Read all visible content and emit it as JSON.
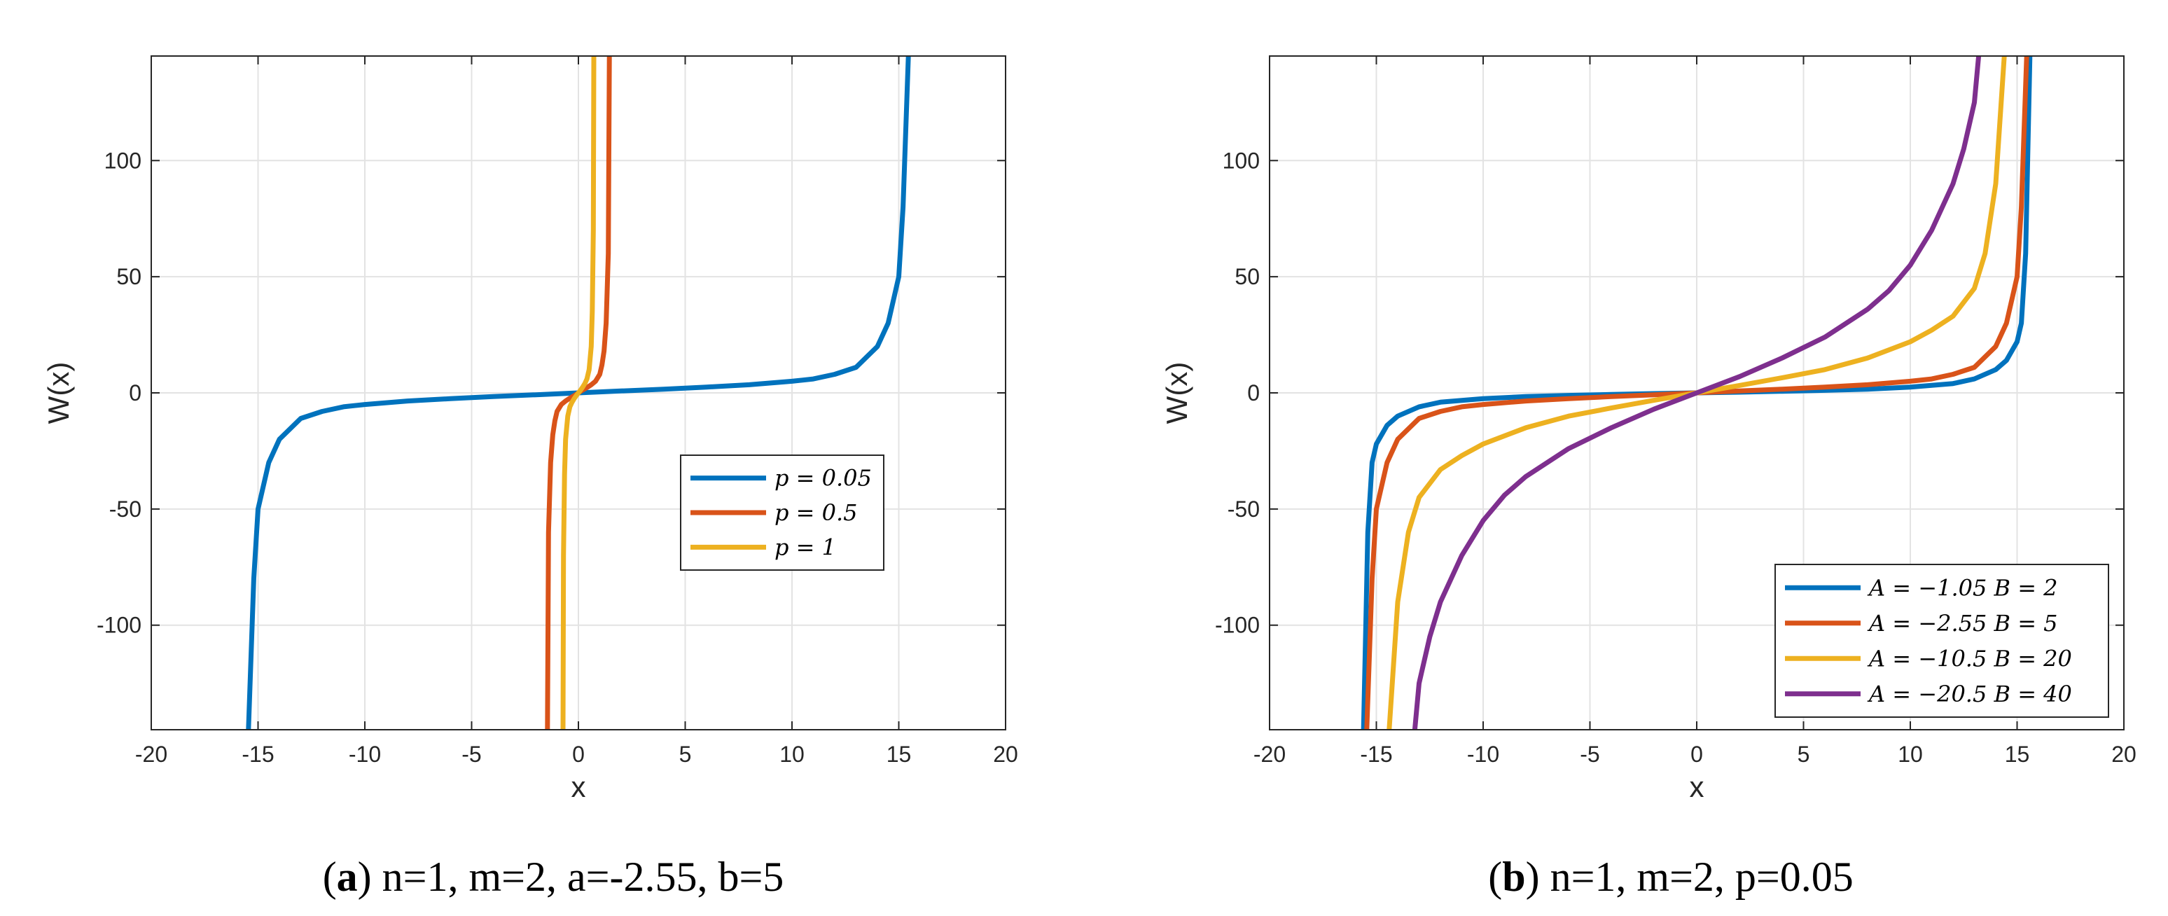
{
  "chart_data": [
    {
      "type": "line",
      "id": "a",
      "caption_letter": "a",
      "caption_text": "n=1, m=2, a=-2.55, b=5",
      "xlabel": "x",
      "ylabel": "W(x)",
      "xlim": [
        -20,
        20
      ],
      "ylim": [
        -145,
        145
      ],
      "xticks": [
        -20,
        -15,
        -10,
        -5,
        0,
        5,
        10,
        15,
        20
      ],
      "yticks": [
        -100,
        -50,
        0,
        50,
        100
      ],
      "grid": true,
      "legend_position": "center-right",
      "series": [
        {
          "name": "p = 0.05",
          "color": "#0072BD",
          "x": [
            -15.45,
            -15.2,
            -15.0,
            -14.5,
            -14.0,
            -13.0,
            -12.0,
            -11.0,
            -10.0,
            -8.0,
            -6.0,
            -4.0,
            -2.0,
            0.0,
            2.0,
            4.0,
            6.0,
            8.0,
            10.0,
            11.0,
            12.0,
            13.0,
            14.0,
            14.5,
            15.0,
            15.2,
            15.45
          ],
          "y": [
            -145,
            -80,
            -50,
            -30,
            -20,
            -11,
            -8,
            -6,
            -5,
            -3.5,
            -2.5,
            -1.6,
            -0.8,
            0,
            0.8,
            1.6,
            2.5,
            3.5,
            5,
            6,
            8,
            11,
            20,
            30,
            50,
            80,
            145
          ]
        },
        {
          "name": "p = 0.5",
          "color": "#D95319",
          "x": [
            -1.45,
            -1.4,
            -1.3,
            -1.2,
            -1.1,
            -1.0,
            -0.8,
            -0.6,
            -0.4,
            -0.2,
            0.0,
            0.2,
            0.4,
            0.6,
            0.8,
            1.0,
            1.1,
            1.2,
            1.3,
            1.4,
            1.45
          ],
          "y": [
            -145,
            -60,
            -30,
            -18,
            -12,
            -8,
            -5,
            -3.5,
            -2.3,
            -1.2,
            0,
            1.2,
            2.3,
            3.5,
            5,
            8,
            12,
            18,
            30,
            60,
            145
          ]
        },
        {
          "name": "p = 1",
          "color": "#EDB120",
          "x": [
            -0.72,
            -0.7,
            -0.65,
            -0.6,
            -0.5,
            -0.4,
            -0.3,
            -0.2,
            -0.1,
            0.0,
            0.1,
            0.2,
            0.3,
            0.4,
            0.5,
            0.6,
            0.65,
            0.7,
            0.72
          ],
          "y": [
            -145,
            -70,
            -35,
            -20,
            -10,
            -6,
            -4,
            -2.5,
            -1.2,
            0,
            1.2,
            2.5,
            4,
            6,
            10,
            20,
            35,
            70,
            145
          ]
        }
      ]
    },
    {
      "type": "line",
      "id": "b",
      "caption_letter": "b",
      "caption_text": "n=1, m=2, p=0.05",
      "xlabel": "x",
      "ylabel": "W(x)",
      "xlim": [
        -20,
        20
      ],
      "ylim": [
        -145,
        145
      ],
      "xticks": [
        -20,
        -15,
        -10,
        -5,
        0,
        5,
        10,
        15,
        20
      ],
      "yticks": [
        -100,
        -50,
        0,
        50,
        100
      ],
      "grid": true,
      "legend_position": "bottom-right",
      "series": [
        {
          "name": "A = −1.05 B = 2",
          "color": "#0072BD",
          "x": [
            -15.6,
            -15.4,
            -15.2,
            -15.0,
            -14.5,
            -14.0,
            -13.0,
            -12.0,
            -10.0,
            -8.0,
            -6.0,
            -4.0,
            -2.0,
            0.0,
            2.0,
            4.0,
            6.0,
            8.0,
            10.0,
            12.0,
            13.0,
            14.0,
            14.5,
            15.0,
            15.2,
            15.4,
            15.6
          ],
          "y": [
            -145,
            -60,
            -30,
            -22,
            -14,
            -10,
            -6,
            -4,
            -2.5,
            -1.6,
            -1.1,
            -0.7,
            -0.3,
            0,
            0.3,
            0.7,
            1.1,
            1.6,
            2.5,
            4,
            6,
            10,
            14,
            22,
            30,
            60,
            145
          ]
        },
        {
          "name": "A = −2.55 B = 5",
          "color": "#D95319",
          "x": [
            -15.45,
            -15.2,
            -15.0,
            -14.5,
            -14.0,
            -13.0,
            -12.0,
            -11.0,
            -10.0,
            -8.0,
            -6.0,
            -4.0,
            -2.0,
            0.0,
            2.0,
            4.0,
            6.0,
            8.0,
            10.0,
            11.0,
            12.0,
            13.0,
            14.0,
            14.5,
            15.0,
            15.2,
            15.45
          ],
          "y": [
            -145,
            -80,
            -50,
            -30,
            -20,
            -11,
            -8,
            -6,
            -5,
            -3.5,
            -2.5,
            -1.6,
            -0.8,
            0,
            0.8,
            1.6,
            2.5,
            3.5,
            5,
            6,
            8,
            11,
            20,
            30,
            50,
            80,
            145
          ]
        },
        {
          "name": "A = −10.5 B = 20",
          "color": "#EDB120",
          "x": [
            -14.4,
            -14.0,
            -13.5,
            -13.0,
            -12.0,
            -11.0,
            -10.0,
            -8.0,
            -6.0,
            -4.0,
            -2.0,
            0.0,
            2.0,
            4.0,
            6.0,
            8.0,
            10.0,
            11.0,
            12.0,
            13.0,
            13.5,
            14.0,
            14.4
          ],
          "y": [
            -145,
            -90,
            -60,
            -45,
            -33,
            -27,
            -22,
            -15,
            -10,
            -6.5,
            -3.2,
            0,
            3.2,
            6.5,
            10,
            15,
            22,
            27,
            33,
            45,
            60,
            90,
            145
          ]
        },
        {
          "name": "A = −20.5 B = 40",
          "color": "#7E2F8E",
          "x": [
            -13.2,
            -13.0,
            -12.5,
            -12.0,
            -11.0,
            -10.0,
            -9.0,
            -8.0,
            -6.0,
            -4.0,
            -2.0,
            0.0,
            2.0,
            4.0,
            6.0,
            8.0,
            9.0,
            10.0,
            11.0,
            12.0,
            12.5,
            13.0,
            13.2
          ],
          "y": [
            -145,
            -125,
            -105,
            -90,
            -70,
            -55,
            -44,
            -36,
            -24,
            -15,
            -7,
            0,
            7,
            15,
            24,
            36,
            44,
            55,
            70,
            90,
            105,
            125,
            145
          ]
        }
      ]
    }
  ]
}
